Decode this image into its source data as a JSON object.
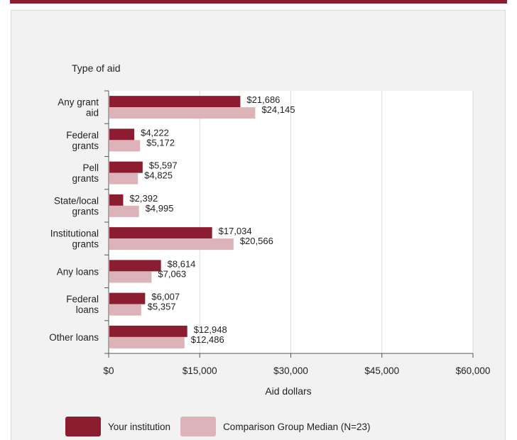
{
  "chart_data": {
    "type": "bar",
    "orientation": "horizontal",
    "ylabel": "Type of aid",
    "xlabel": "Aid dollars",
    "categories": [
      [
        "Any grant",
        "aid"
      ],
      [
        "Federal",
        "grants"
      ],
      [
        "Pell",
        "grants"
      ],
      [
        "State/local",
        "grants"
      ],
      [
        "Institutional",
        "grants"
      ],
      [
        "Any loans"
      ],
      [
        "Federal",
        "loans"
      ],
      [
        "Other loans"
      ]
    ],
    "series": [
      {
        "name": "Your institution",
        "color": "#8c1d30",
        "values": [
          21686,
          4222,
          5597,
          2392,
          17034,
          8614,
          6007,
          12948
        ],
        "labels": [
          "$21,686",
          "$4,222",
          "$5,597",
          "$2,392",
          "$17,034",
          "$8,614",
          "$6,007",
          "$12,948"
        ]
      },
      {
        "name": "Comparison Group Median (N=23)",
        "color": "#dcb3b9",
        "values": [
          24145,
          5172,
          4825,
          4995,
          20566,
          7063,
          5357,
          12486
        ],
        "labels": [
          "$24,145",
          "$5,172",
          "$4,825",
          "$4,995",
          "$20,566",
          "$7,063",
          "$5,357",
          "$12,486"
        ]
      }
    ],
    "xlim": [
      0,
      60000
    ],
    "xticks": [
      0,
      15000,
      30000,
      45000,
      60000
    ],
    "xtick_labels": [
      "$0",
      "$15,000",
      "$30,000",
      "$45,000",
      "$60,000"
    ],
    "grid": true,
    "legend_position": "bottom"
  }
}
